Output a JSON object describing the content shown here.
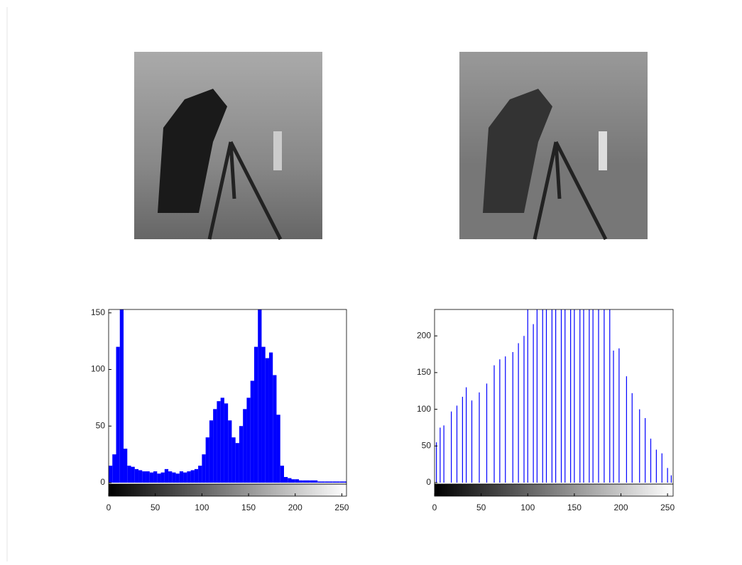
{
  "chart_data": [
    {
      "type": "histogram",
      "color": "#0000ff",
      "bins": [
        0,
        4,
        8,
        12,
        16,
        20,
        24,
        28,
        32,
        36,
        40,
        44,
        48,
        52,
        56,
        60,
        64,
        68,
        72,
        76,
        80,
        84,
        88,
        92,
        96,
        100,
        104,
        108,
        112,
        116,
        120,
        124,
        128,
        132,
        136,
        140,
        144,
        148,
        152,
        156,
        160,
        164,
        168,
        172,
        176,
        180,
        184,
        188,
        192,
        196,
        200,
        204,
        208,
        212,
        216,
        220,
        224,
        228,
        232,
        236,
        240,
        244,
        248,
        252,
        256
      ],
      "values": [
        15,
        25,
        120,
        153,
        30,
        15,
        14,
        12,
        11,
        10,
        10,
        9,
        10,
        8,
        9,
        12,
        10,
        9,
        8,
        10,
        9,
        10,
        11,
        12,
        15,
        25,
        40,
        55,
        65,
        72,
        75,
        70,
        55,
        40,
        35,
        50,
        65,
        75,
        90,
        120,
        153,
        120,
        110,
        115,
        95,
        60,
        15,
        5,
        4,
        3,
        3,
        2,
        2,
        2,
        2,
        2,
        1,
        1,
        1,
        1,
        1,
        1,
        1,
        1
      ],
      "xlim": [
        0,
        255
      ],
      "ylim": [
        0,
        153
      ],
      "xticks": [
        0,
        50,
        100,
        150,
        200,
        250
      ],
      "yticks": [
        0,
        50,
        100,
        150
      ]
    },
    {
      "type": "stem",
      "color": "#0000ff",
      "x": [
        2,
        6,
        10,
        18,
        24,
        30,
        34,
        40,
        48,
        56,
        64,
        70,
        76,
        84,
        90,
        96,
        100,
        106,
        110,
        116,
        120,
        126,
        130,
        136,
        140,
        146,
        150,
        156,
        160,
        166,
        170,
        176,
        182,
        188,
        192,
        198,
        206,
        212,
        220,
        226,
        232,
        238,
        244,
        250,
        254
      ],
      "values": [
        55,
        75,
        78,
        97,
        105,
        117,
        130,
        112,
        123,
        135,
        160,
        168,
        172,
        178,
        190,
        200,
        236,
        216,
        236,
        236,
        236,
        236,
        236,
        236,
        236,
        236,
        236,
        236,
        236,
        236,
        236,
        236,
        236,
        236,
        180,
        183,
        145,
        122,
        100,
        88,
        60,
        45,
        40,
        20,
        10
      ],
      "xlim": [
        0,
        256
      ],
      "ylim": [
        0,
        236
      ],
      "xticks": [
        0,
        50,
        100,
        150,
        200,
        250
      ],
      "yticks": [
        0,
        50,
        100,
        150,
        200
      ]
    }
  ]
}
